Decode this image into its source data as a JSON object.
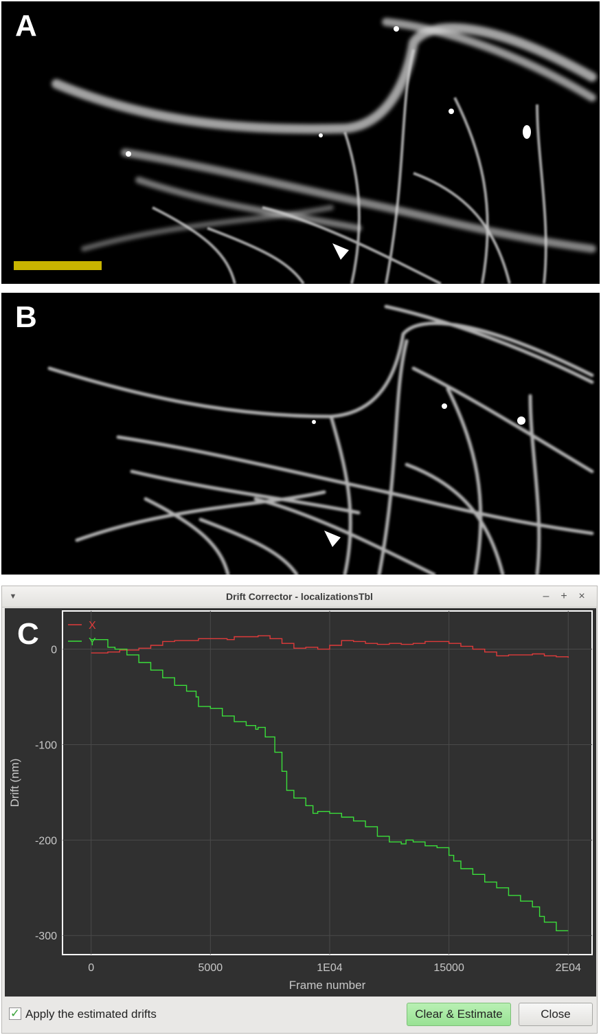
{
  "panels": {
    "a_label": "A",
    "b_label": "B",
    "c_label": "C"
  },
  "window": {
    "title": "Drift Corrector - localizationsTbl",
    "menu_icon": "chevron-down-icon",
    "min_icon": "minimize-icon",
    "max_icon": "maximize-icon",
    "close_icon": "close-icon"
  },
  "footer": {
    "apply_label": "Apply the estimated drifts",
    "apply_checked": true,
    "estimate_label": "Clear & Estimate",
    "close_label": "Close"
  },
  "colors": {
    "scale_bar": "#c8b400",
    "series_x": "#e03a3a",
    "series_y": "#3adf3a",
    "plot_bg": "#303030",
    "estimate_button": "#a6e8a0"
  },
  "chart_data": {
    "type": "line",
    "xlabel": "Frame number",
    "ylabel": "Drift (nm)",
    "xlim": [
      -1200,
      21000
    ],
    "ylim": [
      -320,
      40
    ],
    "xticks": [
      0,
      5000,
      10000,
      15000,
      20000
    ],
    "xtick_labels": [
      "0",
      "5000",
      "1E04",
      "15000",
      "2E04"
    ],
    "yticks": [
      0,
      -100,
      -200,
      -300
    ],
    "ytick_labels": [
      "0",
      "-100",
      "-200",
      "-300"
    ],
    "grid": true,
    "legend": "top-left",
    "series": [
      {
        "name": "X",
        "x": [
          0,
          700,
          1200,
          2000,
          2500,
          3000,
          3500,
          4000,
          4500,
          5000,
          5700,
          6000,
          6500,
          7000,
          7500,
          8000,
          8500,
          9000,
          9500,
          10000,
          10500,
          11000,
          11500,
          12000,
          12500,
          13000,
          13500,
          14000,
          14500,
          15000,
          15500,
          16000,
          16500,
          17000,
          17500,
          18000,
          18500,
          19000,
          19500,
          20000
        ],
        "y": [
          -4,
          -3,
          -1,
          1,
          4,
          8,
          9,
          9,
          11,
          11,
          10,
          13,
          13,
          14,
          11,
          6,
          1,
          2,
          0,
          4,
          9,
          8,
          6,
          5,
          6,
          5,
          6,
          8,
          8,
          6,
          3,
          0,
          -3,
          -7,
          -6,
          -6,
          -5,
          -7,
          -8,
          -9
        ]
      },
      {
        "name": "Y",
        "x": [
          0,
          600,
          700,
          1000,
          1500,
          2000,
          2500,
          3000,
          3500,
          4000,
          4400,
          4500,
          5000,
          5500,
          6000,
          6500,
          6900,
          7000,
          7300,
          7700,
          8000,
          8200,
          8500,
          9000,
          9300,
          9500,
          10000,
          10500,
          11000,
          11500,
          12000,
          12500,
          13000,
          13200,
          13500,
          14000,
          14500,
          15000,
          15200,
          15500,
          16000,
          16500,
          17000,
          17500,
          18000,
          18500,
          18800,
          19000,
          19500,
          20000
        ],
        "y": [
          10,
          10,
          2,
          0,
          -6,
          -14,
          -22,
          -30,
          -38,
          -44,
          -50,
          -60,
          -62,
          -70,
          -76,
          -80,
          -84,
          -82,
          -92,
          -108,
          -128,
          -148,
          -156,
          -164,
          -172,
          -170,
          -172,
          -176,
          -180,
          -186,
          -196,
          -202,
          -204,
          -200,
          -202,
          -206,
          -208,
          -216,
          -222,
          -230,
          -236,
          -244,
          -250,
          -258,
          -264,
          -270,
          -280,
          -286,
          -295,
          -295
        ]
      }
    ]
  }
}
